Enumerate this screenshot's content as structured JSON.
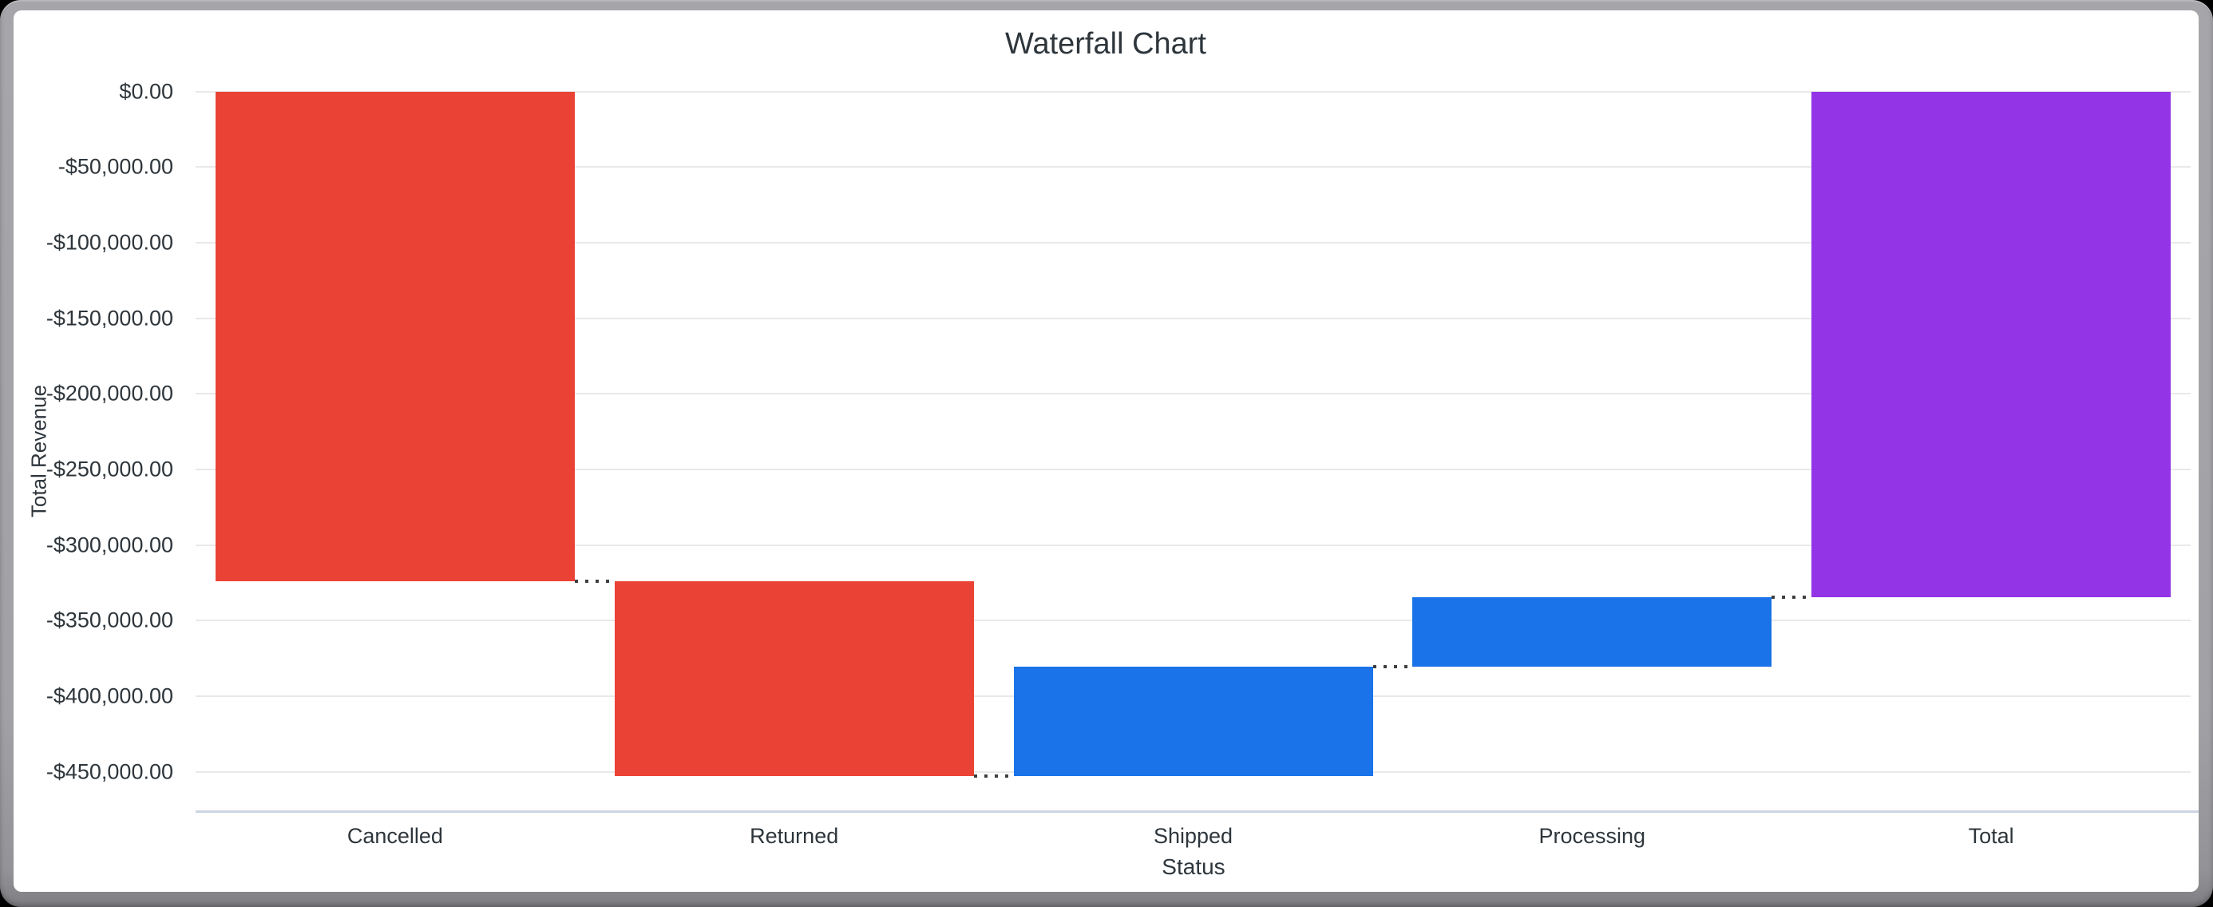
{
  "window": {
    "frame_color": "#a2a2a6",
    "card_color": "#ffffff",
    "outer_background": "#000000"
  },
  "chart_data": {
    "type": "bar",
    "subtype": "waterfall",
    "title": "Waterfall Chart",
    "xlabel": "Status",
    "ylabel": "Total Revenue",
    "categories": [
      "Cancelled",
      "Returned",
      "Shipped",
      "Processing",
      "Total"
    ],
    "values": [
      -323900,
      -128900,
      72200,
      46000,
      -334600
    ],
    "cumulative": [
      -323900,
      -452800,
      -380600,
      -334600,
      -334600
    ],
    "bars": [
      {
        "label": "Cancelled",
        "start": 0,
        "end": -323900,
        "role": "decrease",
        "color": "#ea4335"
      },
      {
        "label": "Returned",
        "start": -323900,
        "end": -452800,
        "role": "decrease",
        "color": "#ea4335"
      },
      {
        "label": "Shipped",
        "start": -452800,
        "end": -380600,
        "role": "increase",
        "color": "#1a73e8"
      },
      {
        "label": "Processing",
        "start": -380600,
        "end": -334600,
        "role": "increase",
        "color": "#1a73e8"
      },
      {
        "label": "Total",
        "start": 0,
        "end": -334600,
        "role": "total",
        "color": "#9334e6"
      }
    ],
    "y_ticks": [
      {
        "label": "$0.00",
        "value": 0
      },
      {
        "label": "-$50,000.00",
        "value": -50000
      },
      {
        "label": "-$100,000.00",
        "value": -100000
      },
      {
        "label": "-$150,000.00",
        "value": -150000
      },
      {
        "label": "-$200,000.00",
        "value": -200000
      },
      {
        "label": "-$250,000.00",
        "value": -250000
      },
      {
        "label": "-$300,000.00",
        "value": -300000
      },
      {
        "label": "-$350,000.00",
        "value": -350000
      },
      {
        "label": "-$400,000.00",
        "value": -400000
      },
      {
        "label": "-$450,000.00",
        "value": -450000
      }
    ],
    "ylim": [
      0,
      -476000
    ],
    "grid": true,
    "legend": "none",
    "colors": {
      "decrease": "#ea4335",
      "increase": "#1a73e8",
      "total": "#9334e6",
      "gridline": "#e9e9e9",
      "baseline": "#ccd5e3",
      "connector": "#3c4043",
      "text": "#2e363c"
    }
  }
}
